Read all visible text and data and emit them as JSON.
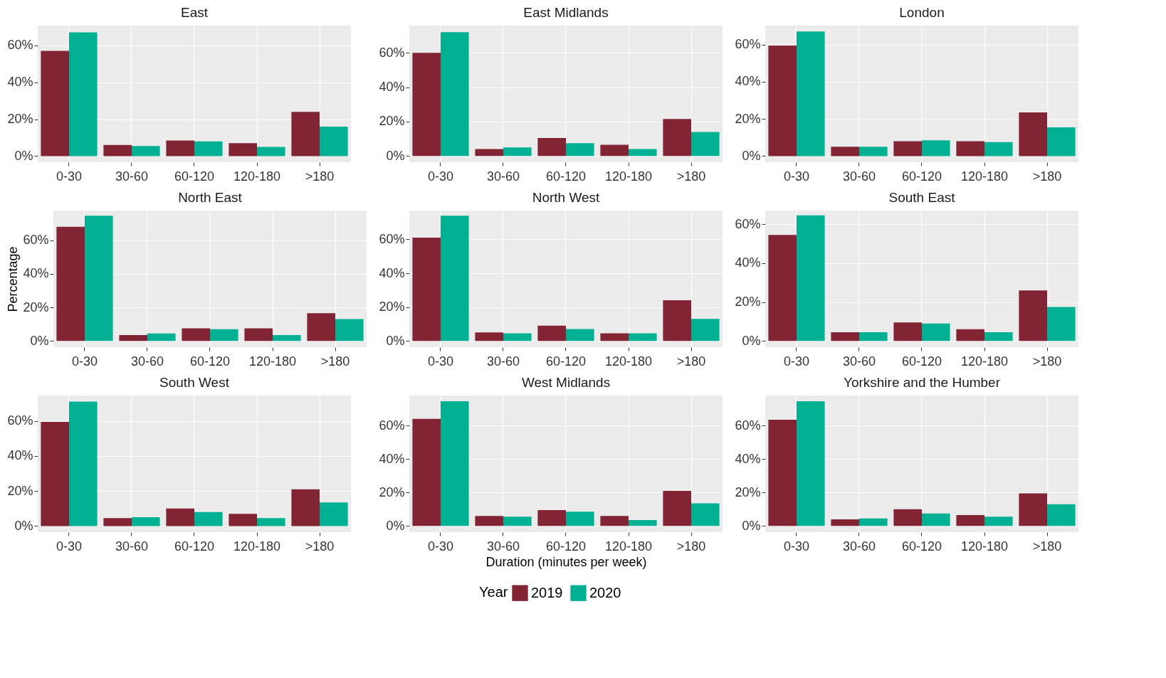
{
  "chart_data": [
    {
      "type": "bar",
      "title": "East",
      "legend_title": "Year",
      "legend": "bottom",
      "categories": [
        "0-30",
        "30-60",
        "60-120",
        "120-180",
        ">180"
      ],
      "ylim": [
        -3.3,
        70.7
      ],
      "yticks": [
        {
          "value": 0,
          "label": "0%"
        },
        {
          "value": 20,
          "label": "20%"
        },
        {
          "value": 40,
          "label": "40%"
        },
        {
          "value": 60,
          "label": "60%"
        }
      ],
      "grid": true,
      "series": [
        {
          "name": "2019",
          "color": "#832434",
          "values": [
            57,
            6,
            8.5,
            7,
            24
          ]
        },
        {
          "name": "2020",
          "color": "#00b092",
          "values": [
            67,
            5.5,
            8,
            5,
            16
          ]
        }
      ]
    },
    {
      "type": "bar",
      "title": "East Midlands",
      "categories": [
        "0-30",
        "30-60",
        "60-120",
        "120-180",
        ">180"
      ],
      "ylim": [
        -3.6,
        75.8
      ],
      "yticks": [
        {
          "value": 0,
          "label": "0%"
        },
        {
          "value": 20,
          "label": "20%"
        },
        {
          "value": 40,
          "label": "40%"
        },
        {
          "value": 60,
          "label": "60%"
        }
      ],
      "grid": true,
      "series": [
        {
          "name": "2019",
          "color": "#832434",
          "values": [
            60,
            4,
            10.5,
            6.5,
            21.5
          ]
        },
        {
          "name": "2020",
          "color": "#00b092",
          "values": [
            72,
            5,
            7.5,
            4,
            14
          ]
        }
      ]
    },
    {
      "type": "bar",
      "title": "London",
      "categories": [
        "0-30",
        "30-60",
        "60-120",
        "120-180",
        ">180"
      ],
      "ylim": [
        -3.3,
        70.2
      ],
      "yticks": [
        {
          "value": 0,
          "label": "0%"
        },
        {
          "value": 20,
          "label": "20%"
        },
        {
          "value": 40,
          "label": "40%"
        },
        {
          "value": 60,
          "label": "60%"
        }
      ],
      "grid": true,
      "series": [
        {
          "name": "2019",
          "color": "#832434",
          "values": [
            59.5,
            5,
            8,
            8,
            23.5
          ]
        },
        {
          "name": "2020",
          "color": "#00b092",
          "values": [
            67,
            5,
            8.5,
            7.5,
            15.5
          ]
        }
      ]
    },
    {
      "type": "bar",
      "title": "North East",
      "ylabel": "Percentage",
      "categories": [
        "0-30",
        "30-60",
        "60-120",
        "120-180",
        ">180"
      ],
      "ylim": [
        -3.7,
        77.6
      ],
      "yticks": [
        {
          "value": 0,
          "label": "0%"
        },
        {
          "value": 20,
          "label": "20%"
        },
        {
          "value": 40,
          "label": "40%"
        },
        {
          "value": 60,
          "label": "60%"
        }
      ],
      "grid": true,
      "series": [
        {
          "name": "2019",
          "color": "#832434",
          "values": [
            68,
            3.5,
            7.5,
            7.5,
            16.5
          ]
        },
        {
          "name": "2020",
          "color": "#00b092",
          "values": [
            74.5,
            4.5,
            7,
            3.5,
            13
          ]
        }
      ]
    },
    {
      "type": "bar",
      "title": "North West",
      "categories": [
        "0-30",
        "30-60",
        "60-120",
        "120-180",
        ">180"
      ],
      "ylim": [
        -3.7,
        77
      ],
      "yticks": [
        {
          "value": 0,
          "label": "0%"
        },
        {
          "value": 20,
          "label": "20%"
        },
        {
          "value": 40,
          "label": "40%"
        },
        {
          "value": 60,
          "label": "60%"
        }
      ],
      "grid": true,
      "series": [
        {
          "name": "2019",
          "color": "#832434",
          "values": [
            61,
            5,
            9,
            4.5,
            24
          ]
        },
        {
          "name": "2020",
          "color": "#00b092",
          "values": [
            74,
            4.5,
            7,
            4.5,
            13
          ]
        }
      ]
    },
    {
      "type": "bar",
      "title": "South East",
      "categories": [
        "0-30",
        "30-60",
        "60-120",
        "120-180",
        ">180"
      ],
      "ylim": [
        -3.2,
        67
      ],
      "yticks": [
        {
          "value": 0,
          "label": "0%"
        },
        {
          "value": 20,
          "label": "20%"
        },
        {
          "value": 40,
          "label": "40%"
        },
        {
          "value": 60,
          "label": "60%"
        }
      ],
      "grid": true,
      "series": [
        {
          "name": "2019",
          "color": "#832434",
          "values": [
            54.5,
            4.5,
            9.5,
            6,
            26
          ]
        },
        {
          "name": "2020",
          "color": "#00b092",
          "values": [
            64.5,
            4.5,
            9,
            4.5,
            17.5
          ]
        }
      ]
    },
    {
      "type": "bar",
      "title": "South West",
      "categories": [
        "0-30",
        "30-60",
        "60-120",
        "120-180",
        ">180"
      ],
      "ylim": [
        -3.5,
        74.5
      ],
      "yticks": [
        {
          "value": 0,
          "label": "0%"
        },
        {
          "value": 20,
          "label": "20%"
        },
        {
          "value": 40,
          "label": "40%"
        },
        {
          "value": 60,
          "label": "60%"
        }
      ],
      "grid": true,
      "series": [
        {
          "name": "2019",
          "color": "#832434",
          "values": [
            59.5,
            4.5,
            10,
            7,
            21
          ]
        },
        {
          "name": "2020",
          "color": "#00b092",
          "values": [
            71,
            5,
            8,
            4.5,
            13.5
          ]
        }
      ]
    },
    {
      "type": "bar",
      "title": "West Midlands",
      "xlabel": "Duration (minutes per week)",
      "categories": [
        "0-30",
        "30-60",
        "60-120",
        "120-180",
        ">180"
      ],
      "ylim": [
        -3.7,
        77.9
      ],
      "yticks": [
        {
          "value": 0,
          "label": "0%"
        },
        {
          "value": 20,
          "label": "20%"
        },
        {
          "value": 40,
          "label": "40%"
        },
        {
          "value": 60,
          "label": "60%"
        }
      ],
      "grid": true,
      "series": [
        {
          "name": "2019",
          "color": "#832434",
          "values": [
            64,
            6,
            9.5,
            6,
            21
          ]
        },
        {
          "name": "2020",
          "color": "#00b092",
          "values": [
            74.5,
            5.5,
            8.5,
            3.5,
            13.5
          ]
        }
      ]
    },
    {
      "type": "bar",
      "title": "Yorkshire and the Humber",
      "categories": [
        "0-30",
        "30-60",
        "60-120",
        "120-180",
        ">180"
      ],
      "ylim": [
        -3.7,
        77.9
      ],
      "yticks": [
        {
          "value": 0,
          "label": "0%"
        },
        {
          "value": 20,
          "label": "20%"
        },
        {
          "value": 40,
          "label": "40%"
        },
        {
          "value": 60,
          "label": "60%"
        }
      ],
      "grid": true,
      "series": [
        {
          "name": "2019",
          "color": "#832434",
          "values": [
            63.5,
            4,
            10,
            6.5,
            19.5
          ]
        },
        {
          "name": "2020",
          "color": "#00b092",
          "values": [
            74.5,
            4.5,
            7.5,
            5.5,
            13
          ]
        }
      ]
    }
  ]
}
